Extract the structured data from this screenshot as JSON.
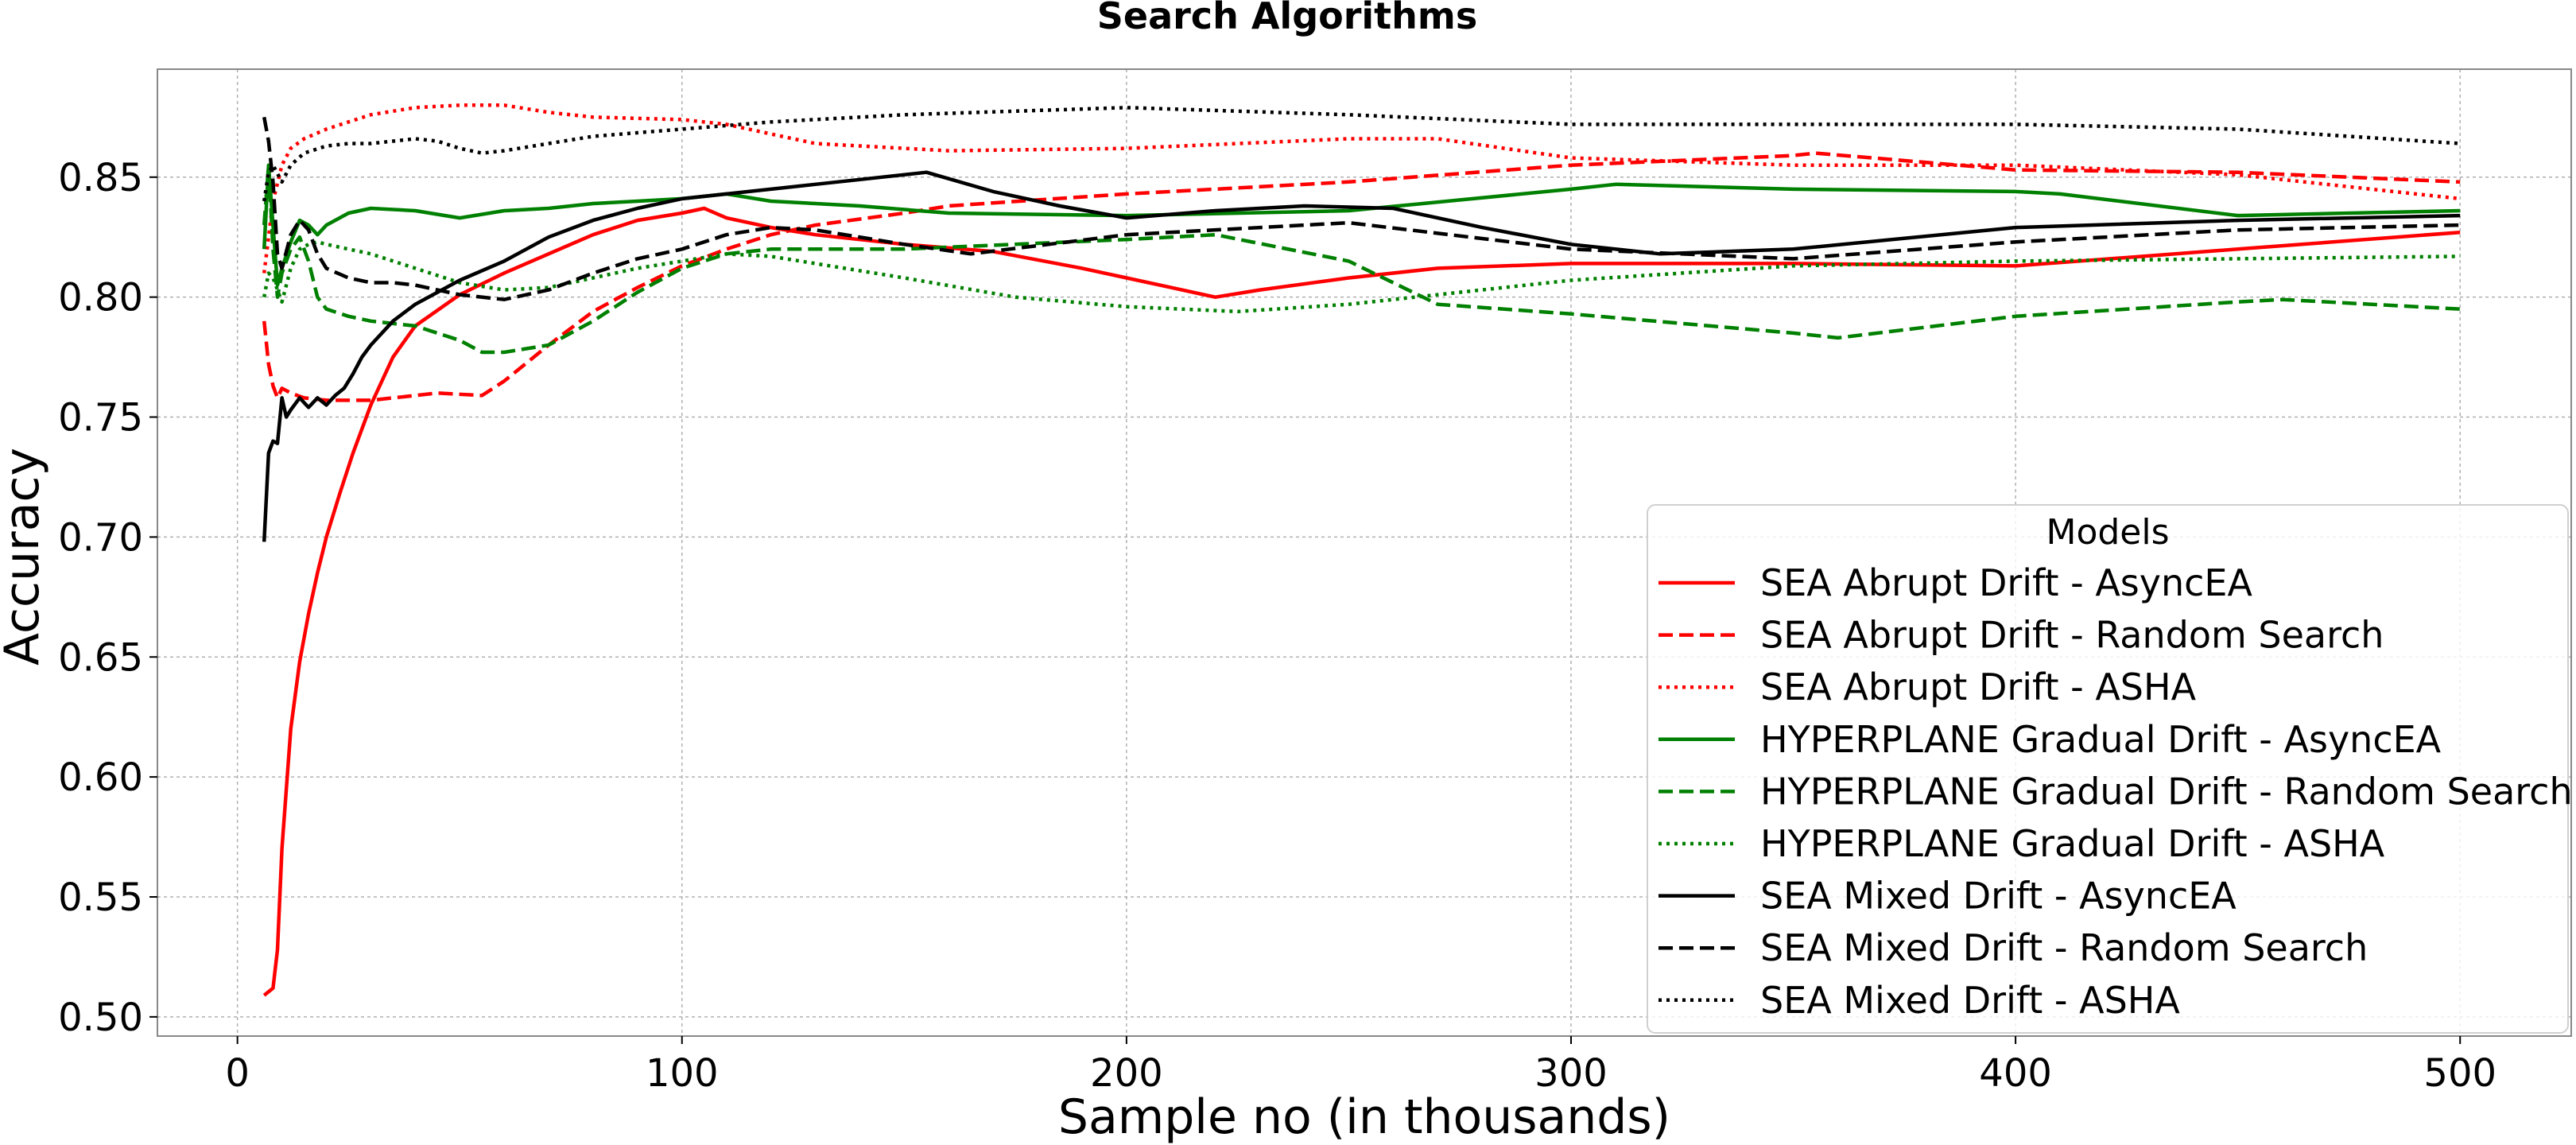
{
  "chart_data": {
    "type": "line",
    "title": "Search Algorithms",
    "xlabel": "Sample no (in thousands)",
    "ylabel": "Accuracy",
    "xlim": [
      -18,
      525
    ],
    "ylim": [
      0.492,
      0.895
    ],
    "xticks": [
      0,
      100,
      200,
      300,
      400,
      500
    ],
    "xtick_labels": [
      "0",
      "100",
      "200",
      "300",
      "400",
      "500"
    ],
    "yticks": [
      0.5,
      0.55,
      0.6,
      0.65,
      0.7,
      0.75,
      0.8,
      0.85
    ],
    "ytick_labels": [
      "0.50",
      "0.55",
      "0.60",
      "0.65",
      "0.70",
      "0.75",
      "0.80",
      "0.85"
    ],
    "grid": true,
    "legend": {
      "title": "Models",
      "placement": "lower-right"
    },
    "series": [
      {
        "name": "SEA Abrupt Drift - AsyncEA",
        "color": "#ff0000",
        "style": "solid",
        "x": [
          6,
          8,
          9,
          10,
          12,
          14,
          16,
          18,
          20,
          23,
          26,
          30,
          35,
          40,
          50,
          60,
          70,
          80,
          90,
          100,
          105,
          110,
          120,
          130,
          150,
          170,
          190,
          200,
          210,
          220,
          230,
          250,
          270,
          300,
          350,
          400,
          450,
          500
        ],
        "y": [
          0.509,
          0.512,
          0.528,
          0.57,
          0.62,
          0.648,
          0.668,
          0.685,
          0.7,
          0.718,
          0.735,
          0.755,
          0.775,
          0.788,
          0.801,
          0.81,
          0.818,
          0.826,
          0.832,
          0.835,
          0.837,
          0.833,
          0.829,
          0.826,
          0.822,
          0.819,
          0.812,
          0.808,
          0.804,
          0.8,
          0.803,
          0.808,
          0.812,
          0.814,
          0.814,
          0.813,
          0.82,
          0.827
        ]
      },
      {
        "name": "SEA Abrupt Drift - Random Search",
        "color": "#ff0000",
        "style": "dashed",
        "x": [
          6,
          7,
          8,
          9,
          10,
          12,
          15,
          20,
          30,
          40,
          45,
          55,
          60,
          70,
          80,
          90,
          100,
          110,
          120,
          130,
          150,
          160,
          200,
          250,
          300,
          350,
          355,
          400,
          450,
          500
        ],
        "y": [
          0.79,
          0.772,
          0.763,
          0.758,
          0.762,
          0.76,
          0.758,
          0.757,
          0.757,
          0.759,
          0.76,
          0.759,
          0.765,
          0.78,
          0.794,
          0.804,
          0.813,
          0.82,
          0.826,
          0.83,
          0.835,
          0.838,
          0.843,
          0.848,
          0.855,
          0.859,
          0.86,
          0.853,
          0.852,
          0.848
        ]
      },
      {
        "name": "SEA Abrupt Drift - ASHA",
        "color": "#ff0000",
        "style": "dotted",
        "x": [
          6,
          8,
          10,
          12,
          15,
          20,
          30,
          40,
          50,
          60,
          70,
          80,
          100,
          110,
          130,
          160,
          200,
          250,
          270,
          300,
          350,
          400,
          450,
          500
        ],
        "y": [
          0.81,
          0.84,
          0.855,
          0.862,
          0.866,
          0.87,
          0.876,
          0.879,
          0.88,
          0.88,
          0.877,
          0.875,
          0.874,
          0.872,
          0.864,
          0.861,
          0.862,
          0.866,
          0.866,
          0.858,
          0.855,
          0.855,
          0.851,
          0.841
        ]
      },
      {
        "name": "HYPERPLANE Gradual Drift - AsyncEA",
        "color": "#008000",
        "style": "solid",
        "x": [
          6,
          7,
          8,
          9,
          10,
          12,
          14,
          16,
          18,
          20,
          25,
          30,
          40,
          50,
          60,
          70,
          80,
          90,
          100,
          110,
          120,
          140,
          160,
          200,
          250,
          300,
          310,
          350,
          400,
          410,
          450,
          500
        ],
        "y": [
          0.82,
          0.855,
          0.83,
          0.805,
          0.812,
          0.823,
          0.832,
          0.83,
          0.826,
          0.83,
          0.835,
          0.837,
          0.836,
          0.833,
          0.836,
          0.837,
          0.839,
          0.84,
          0.841,
          0.843,
          0.84,
          0.838,
          0.835,
          0.834,
          0.836,
          0.845,
          0.847,
          0.845,
          0.844,
          0.843,
          0.834,
          0.836
        ]
      },
      {
        "name": "HYPERPLANE Gradual Drift - Random Search",
        "color": "#008000",
        "style": "dashed",
        "x": [
          6,
          7,
          8,
          9,
          10,
          12,
          14,
          16,
          18,
          20,
          25,
          30,
          40,
          50,
          55,
          60,
          70,
          80,
          90,
          100,
          110,
          120,
          150,
          200,
          220,
          250,
          270,
          300,
          350,
          360,
          400,
          450,
          460,
          500
        ],
        "y": [
          0.83,
          0.855,
          0.82,
          0.8,
          0.81,
          0.82,
          0.825,
          0.815,
          0.8,
          0.795,
          0.792,
          0.79,
          0.788,
          0.782,
          0.777,
          0.777,
          0.78,
          0.79,
          0.802,
          0.812,
          0.818,
          0.82,
          0.82,
          0.824,
          0.826,
          0.815,
          0.797,
          0.793,
          0.785,
          0.783,
          0.792,
          0.798,
          0.799,
          0.795
        ]
      },
      {
        "name": "HYPERPLANE Gradual Drift - ASHA",
        "color": "#008000",
        "style": "dotted",
        "x": [
          6,
          7,
          8,
          10,
          12,
          14,
          16,
          18,
          20,
          25,
          30,
          40,
          50,
          60,
          70,
          80,
          90,
          100,
          110,
          120,
          150,
          175,
          200,
          225,
          250,
          300,
          350,
          400,
          450,
          500
        ],
        "y": [
          0.8,
          0.81,
          0.808,
          0.798,
          0.812,
          0.82,
          0.822,
          0.823,
          0.822,
          0.82,
          0.818,
          0.812,
          0.806,
          0.803,
          0.804,
          0.808,
          0.812,
          0.815,
          0.818,
          0.817,
          0.808,
          0.8,
          0.796,
          0.794,
          0.797,
          0.807,
          0.813,
          0.815,
          0.816,
          0.817
        ]
      },
      {
        "name": "SEA Mixed Drift - AsyncEA",
        "color": "#000000",
        "style": "solid",
        "x": [
          6,
          7,
          8,
          9,
          10,
          11,
          12,
          14,
          16,
          18,
          20,
          22,
          24,
          26,
          28,
          30,
          35,
          40,
          50,
          60,
          70,
          80,
          90,
          100,
          110,
          120,
          130,
          140,
          155,
          170,
          185,
          200,
          220,
          240,
          260,
          280,
          300,
          320,
          350,
          400,
          450,
          500
        ],
        "y": [
          0.698,
          0.735,
          0.74,
          0.739,
          0.758,
          0.75,
          0.753,
          0.758,
          0.754,
          0.758,
          0.755,
          0.759,
          0.762,
          0.768,
          0.775,
          0.78,
          0.79,
          0.797,
          0.807,
          0.815,
          0.825,
          0.832,
          0.837,
          0.841,
          0.843,
          0.845,
          0.847,
          0.849,
          0.852,
          0.844,
          0.838,
          0.833,
          0.836,
          0.838,
          0.837,
          0.829,
          0.822,
          0.818,
          0.82,
          0.829,
          0.832,
          0.834
        ]
      },
      {
        "name": "SEA Mixed Drift - Random Search",
        "color": "#000000",
        "style": "dashed",
        "x": [
          6,
          7,
          8,
          9,
          10,
          12,
          14,
          16,
          18,
          20,
          25,
          30,
          35,
          40,
          50,
          60,
          70,
          80,
          90,
          100,
          110,
          120,
          130,
          150,
          165,
          200,
          250,
          300,
          350,
          400,
          450,
          500
        ],
        "y": [
          0.875,
          0.865,
          0.848,
          0.818,
          0.812,
          0.826,
          0.832,
          0.828,
          0.818,
          0.812,
          0.808,
          0.806,
          0.806,
          0.805,
          0.801,
          0.799,
          0.803,
          0.81,
          0.816,
          0.82,
          0.826,
          0.829,
          0.828,
          0.822,
          0.818,
          0.826,
          0.831,
          0.82,
          0.816,
          0.823,
          0.828,
          0.83
        ]
      },
      {
        "name": "SEA Mixed Drift - ASHA",
        "color": "#000000",
        "style": "dotted",
        "x": [
          6,
          7,
          8,
          10,
          12,
          15,
          20,
          25,
          30,
          35,
          40,
          45,
          50,
          55,
          60,
          70,
          80,
          100,
          120,
          150,
          200,
          250,
          300,
          350,
          400,
          450,
          500
        ],
        "y": [
          0.84,
          0.852,
          0.855,
          0.848,
          0.855,
          0.86,
          0.863,
          0.864,
          0.864,
          0.865,
          0.866,
          0.865,
          0.862,
          0.86,
          0.861,
          0.864,
          0.867,
          0.87,
          0.873,
          0.876,
          0.879,
          0.876,
          0.872,
          0.872,
          0.872,
          0.87,
          0.864
        ]
      }
    ]
  }
}
